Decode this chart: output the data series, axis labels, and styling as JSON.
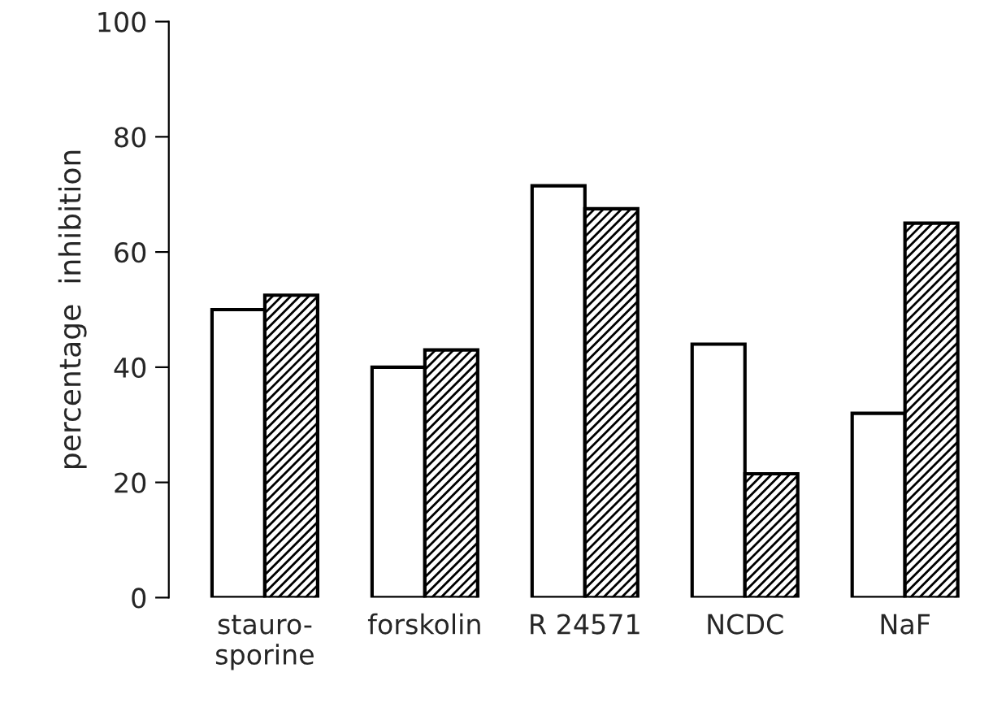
{
  "chart_data": {
    "type": "bar",
    "ylabel": "percentage  inhibition",
    "categories": [
      "stauro-\nsporine",
      "forskolin",
      "R 24571",
      "NCDC",
      "NaF"
    ],
    "series": [
      {
        "color": "#ffffff",
        "values": [
          50,
          40,
          71.5,
          44,
          32
        ]
      },
      {
        "color": "#000000",
        "values": [
          52.5,
          43,
          67.5,
          21.5,
          65
        ]
      }
    ],
    "ylim": [
      0,
      100
    ],
    "yticks": [
      0,
      20,
      40,
      60,
      80,
      100
    ],
    "grid": false,
    "legend": false
  }
}
